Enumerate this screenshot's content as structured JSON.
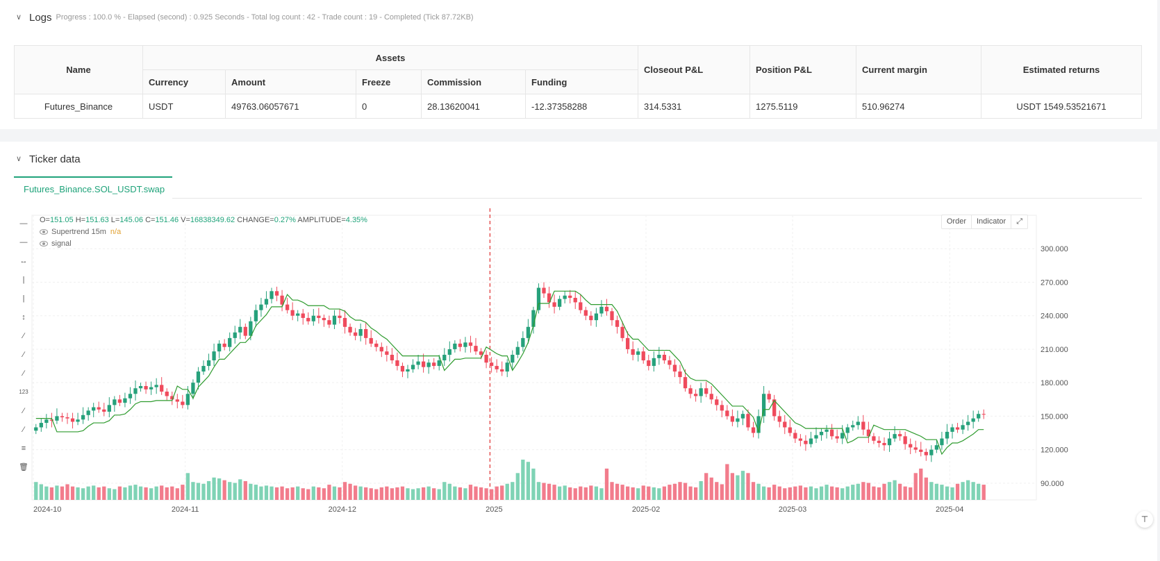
{
  "logs": {
    "title": "Logs",
    "status": "Progress : 100.0 % - Elapsed (second) : 0.925  Seconds - Total log count : 42 - Trade count : 19 - Completed (Tick 87.72KB)",
    "table": {
      "headers": {
        "name": "Name",
        "assets": "Assets",
        "currency": "Currency",
        "amount": "Amount",
        "freeze": "Freeze",
        "commission": "Commission",
        "funding": "Funding",
        "closeout_pl": "Closeout P&L",
        "position_pl": "Position P&L",
        "current_margin": "Current margin",
        "estimated_returns": "Estimated returns"
      },
      "row": {
        "name": "Futures_Binance",
        "currency": "USDT",
        "amount": "49763.06057671",
        "freeze": "0",
        "commission": "28.13620041",
        "funding": "-12.37358288",
        "closeout_pl": "314.5331",
        "position_pl": "1275.5119",
        "current_margin": "510.96274",
        "estimated_returns": "USDT 1549.53521671"
      }
    }
  },
  "ticker": {
    "title": "Ticker data",
    "tab": "Futures_Binance.SOL_USDT.swap",
    "ohlc": {
      "o_label": "O=",
      "o": "151.05",
      "h_label": "H=",
      "h": "151.63",
      "l_label": "L=",
      "l": "145.06",
      "c_label": "C=",
      "c": "151.46",
      "v_label": "V=",
      "v": "16838349.62",
      "change_label": "CHANGE=",
      "change": "0.27%",
      "amp_label": "AMPLITUDE=",
      "amp": "4.35%"
    },
    "legend": [
      {
        "name": "Supertrend 15m",
        "value": "n/a"
      },
      {
        "name": "signal",
        "value": ""
      }
    ],
    "buttons": {
      "order": "Order",
      "indicator": "Indicator"
    },
    "colors": {
      "up": "#26a17b",
      "down": "#ef4a5c",
      "supertrend": "#2e9b2e",
      "long": "#3b5bdb",
      "short": "#e03131",
      "exit": "#c026d3"
    }
  },
  "chart_data": {
    "type": "candlestick",
    "x_ticks": [
      "2024-10",
      "2024-11",
      "2024-12",
      "2025",
      "2025-02",
      "2025-03",
      "2025-04"
    ],
    "y_ticks": [
      "90.000",
      "120.000",
      "150.000",
      "180.000",
      "210.000",
      "240.000",
      "270.000",
      "300.000"
    ],
    "ylim": [
      75,
      330
    ],
    "closes": [
      140,
      144,
      147,
      146,
      150,
      149,
      148,
      145,
      147,
      151,
      155,
      158,
      156,
      154,
      160,
      165,
      162,
      166,
      170,
      175,
      177,
      174,
      176,
      178,
      172,
      168,
      165,
      163,
      160,
      170,
      180,
      190,
      195,
      200,
      208,
      215,
      212,
      220,
      225,
      230,
      222,
      235,
      245,
      250,
      255,
      262,
      258,
      250,
      245,
      240,
      242,
      238,
      235,
      240,
      238,
      236,
      232,
      240,
      238,
      230,
      225,
      222,
      228,
      220,
      215,
      212,
      208,
      205,
      200,
      195,
      190,
      192,
      196,
      199,
      194,
      198,
      195,
      200,
      205,
      210,
      215,
      212,
      216,
      213,
      208,
      205,
      198,
      195,
      192,
      190,
      198,
      205,
      212,
      220,
      230,
      245,
      265,
      260,
      252,
      248,
      255,
      258,
      256,
      252,
      245,
      240,
      236,
      242,
      248,
      244,
      236,
      230,
      220,
      210,
      205,
      208,
      200,
      195,
      202,
      205,
      200,
      196,
      190,
      185,
      175,
      170,
      168,
      175,
      170,
      165,
      160,
      155,
      150,
      145,
      148,
      152,
      140,
      135,
      150,
      170,
      165,
      150,
      145,
      140,
      135,
      130,
      128,
      125,
      130,
      133,
      136,
      138,
      132,
      130,
      135,
      140,
      142,
      145,
      138,
      132,
      128,
      126,
      124,
      130,
      134,
      132,
      125,
      122,
      120,
      118,
      115,
      120,
      124,
      130,
      136,
      140,
      138,
      142,
      145,
      148,
      152,
      151.46
    ],
    "volumes": [
      40,
      35,
      30,
      28,
      32,
      30,
      35,
      30,
      28,
      26,
      30,
      32,
      28,
      30,
      26,
      24,
      30,
      28,
      32,
      34,
      30,
      28,
      26,
      30,
      32,
      28,
      30,
      26,
      34,
      60,
      40,
      38,
      36,
      42,
      50,
      48,
      44,
      40,
      38,
      46,
      42,
      36,
      34,
      30,
      32,
      30,
      28,
      30,
      26,
      28,
      30,
      26,
      24,
      30,
      28,
      26,
      34,
      30,
      28,
      40,
      36,
      32,
      30,
      28,
      26,
      24,
      28,
      30,
      26,
      28,
      30,
      26,
      24,
      26,
      28,
      30,
      26,
      24,
      40,
      36,
      30,
      28,
      26,
      34,
      30,
      28,
      26,
      24,
      30,
      32,
      36,
      40,
      60,
      90,
      85,
      70,
      40,
      38,
      36,
      34,
      30,
      32,
      28,
      26,
      30,
      28,
      32,
      30,
      26,
      70,
      40,
      36,
      34,
      30,
      28,
      26,
      32,
      30,
      28,
      26,
      30,
      34,
      36,
      40,
      38,
      30,
      28,
      42,
      60,
      50,
      40,
      35,
      80,
      60,
      55,
      65,
      60,
      40,
      36,
      30,
      28,
      34,
      30,
      26,
      28,
      30,
      32,
      28,
      30,
      26,
      30,
      34,
      30,
      28,
      26,
      30,
      34,
      36,
      40,
      38,
      30,
      28,
      36,
      40,
      44,
      36,
      30,
      28,
      60,
      70,
      50,
      40,
      36,
      34,
      30,
      28,
      36,
      40,
      44,
      40,
      36,
      34
    ]
  }
}
